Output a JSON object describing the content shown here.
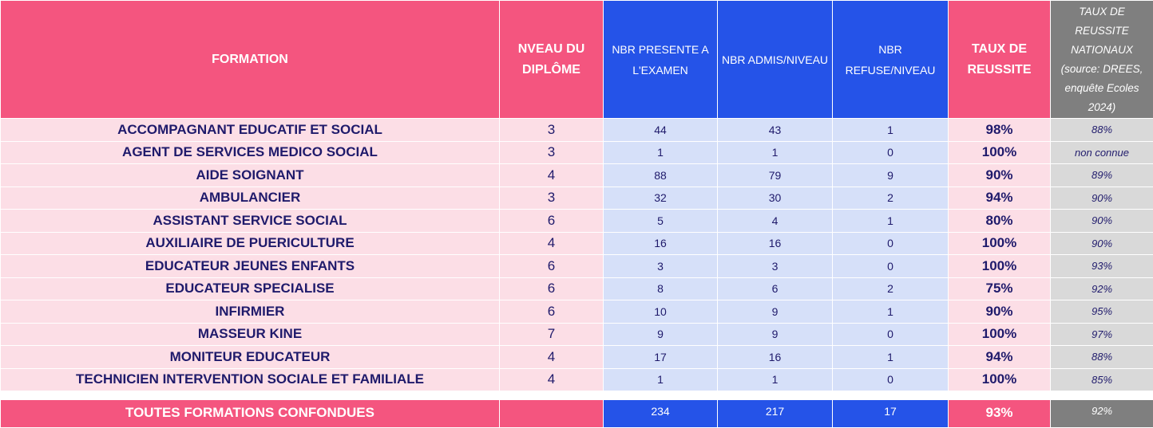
{
  "headers": {
    "formation": "FORMATION",
    "niveau": "NVEAU DU DIPLÔME",
    "presente": "NBR PRESENTE A L'EXAMEN",
    "admis": "NBR ADMIS/NIVEAU",
    "refuse": "NBR REFUSE/NIVEAU",
    "taux": "TAUX DE REUSSITE",
    "national": "TAUX DE REUSSITE NATIONAUX (source: DREES, enquête Ecoles 2024)"
  },
  "rows": [
    {
      "formation": "ACCOMPAGNANT EDUCATIF ET SOCIAL",
      "niveau": "3",
      "presente": "44",
      "admis": "43",
      "refuse": "1",
      "taux": "98%",
      "national": "88%"
    },
    {
      "formation": "AGENT DE SERVICES MEDICO SOCIAL",
      "niveau": "3",
      "presente": "1",
      "admis": "1",
      "refuse": "0",
      "taux": "100%",
      "national": "non connue"
    },
    {
      "formation": "AIDE SOIGNANT",
      "niveau": "4",
      "presente": "88",
      "admis": "79",
      "refuse": "9",
      "taux": "90%",
      "national": "89%"
    },
    {
      "formation": "AMBULANCIER",
      "niveau": "3",
      "presente": "32",
      "admis": "30",
      "refuse": "2",
      "taux": "94%",
      "national": "90%"
    },
    {
      "formation": "ASSISTANT SERVICE SOCIAL",
      "niveau": "6",
      "presente": "5",
      "admis": "4",
      "refuse": "1",
      "taux": "80%",
      "national": "90%"
    },
    {
      "formation": "AUXILIAIRE DE PUERICULTURE",
      "niveau": "4",
      "presente": "16",
      "admis": "16",
      "refuse": "0",
      "taux": "100%",
      "national": "90%"
    },
    {
      "formation": "EDUCATEUR JEUNES ENFANTS",
      "niveau": "6",
      "presente": "3",
      "admis": "3",
      "refuse": "0",
      "taux": "100%",
      "national": "93%"
    },
    {
      "formation": "EDUCATEUR SPECIALISE",
      "niveau": "6",
      "presente": "8",
      "admis": "6",
      "refuse": "2",
      "taux": "75%",
      "national": "92%"
    },
    {
      "formation": "INFIRMIER",
      "niveau": "6",
      "presente": "10",
      "admis": "9",
      "refuse": "1",
      "taux": "90%",
      "national": "95%"
    },
    {
      "formation": "MASSEUR KINE",
      "niveau": "7",
      "presente": "9",
      "admis": "9",
      "refuse": "0",
      "taux": "100%",
      "national": "97%"
    },
    {
      "formation": "MONITEUR EDUCATEUR",
      "niveau": "4",
      "presente": "17",
      "admis": "16",
      "refuse": "1",
      "taux": "94%",
      "national": "88%"
    },
    {
      "formation": "TECHNICIEN INTERVENTION SOCIALE ET FAMILIALE",
      "niveau": "4",
      "presente": "1",
      "admis": "1",
      "refuse": "0",
      "taux": "100%",
      "national": "85%"
    }
  ],
  "total": {
    "formation": "TOUTES FORMATIONS CONFONDUES",
    "niveau": "",
    "presente": "234",
    "admis": "217",
    "refuse": "17",
    "taux": "93%",
    "national": "92%"
  },
  "colors": {
    "pink": "#F4557F",
    "blue": "#2553E8",
    "gray": "#7F7F7F",
    "pink_light": "#FCDEE6",
    "blue_light": "#D6E0F9",
    "gray_light": "#D9D9D9",
    "text": "#1F1A6B"
  }
}
